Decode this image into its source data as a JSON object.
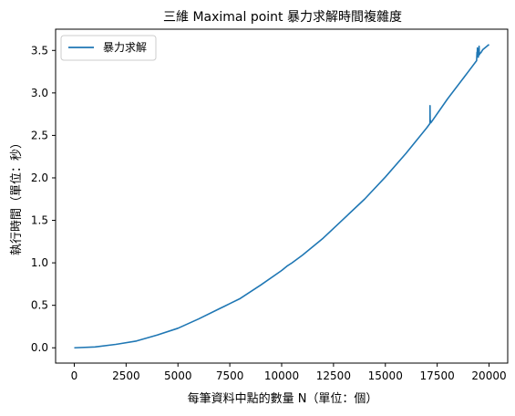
{
  "chart_data": {
    "type": "line",
    "title": "三維 Maximal point 暴力求解時間複雜度",
    "xlabel": "每筆資料中點的數量 N（單位：個）",
    "ylabel": "執行時間（單位：秒）",
    "xlim": [
      -900,
      20900
    ],
    "ylim": [
      -0.18,
      3.75
    ],
    "xticks": [
      0,
      2500,
      5000,
      7500,
      10000,
      12500,
      15000,
      17500,
      20000
    ],
    "xtick_labels": [
      "0",
      "2500",
      "5000",
      "7500",
      "10000",
      "12500",
      "15000",
      "17500",
      "20000"
    ],
    "yticks": [
      0.0,
      0.5,
      1.0,
      1.5,
      2.0,
      2.5,
      3.0,
      3.5
    ],
    "ytick_labels": [
      "0.0",
      "0.5",
      "1.0",
      "1.5",
      "2.0",
      "2.5",
      "3.0",
      "3.5"
    ],
    "grid": false,
    "legend_position": "top-left",
    "series": [
      {
        "name": "暴力求解",
        "color": "#1f77b4",
        "x": [
          0,
          1000,
          2000,
          3000,
          4000,
          5000,
          6000,
          7000,
          7250,
          7500,
          8000,
          9000,
          10000,
          10250,
          10500,
          11000,
          12000,
          13000,
          14000,
          15000,
          16000,
          17000,
          17150,
          17155,
          17160,
          17165,
          17200,
          18000,
          19000,
          19400,
          19420,
          19430,
          19440,
          19450,
          19460,
          19480,
          19500,
          19520,
          19530,
          19540,
          19560,
          19600,
          19700,
          20000
        ],
        "y": [
          0.0,
          0.01,
          0.04,
          0.08,
          0.15,
          0.23,
          0.34,
          0.46,
          0.49,
          0.52,
          0.58,
          0.74,
          0.91,
          0.96,
          1.0,
          1.09,
          1.29,
          1.52,
          1.75,
          2.01,
          2.29,
          2.59,
          2.64,
          2.85,
          2.67,
          2.68,
          2.65,
          2.93,
          3.25,
          3.38,
          3.48,
          3.45,
          3.53,
          3.44,
          3.5,
          3.42,
          3.46,
          3.55,
          3.47,
          3.45,
          3.47,
          3.47,
          3.51,
          3.57
        ]
      }
    ]
  }
}
